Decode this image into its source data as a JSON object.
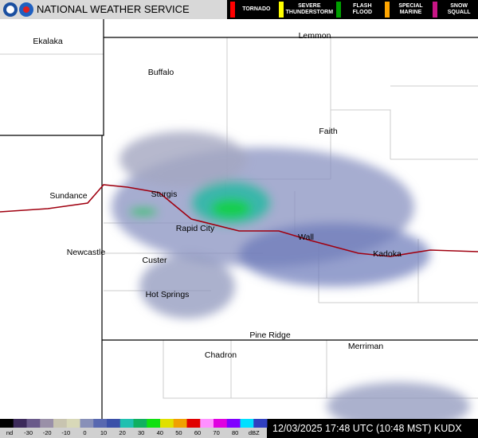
{
  "header": {
    "agency": "NATIONAL WEATHER SERVICE",
    "warnings": [
      {
        "label": "TORNADO",
        "color": "#ff0000"
      },
      {
        "label": "SEVERE THUNDERSTORM",
        "color": "#ffff00"
      },
      {
        "label": "FLASH FLOOD",
        "color": "#00a000"
      },
      {
        "label": "SPECIAL MARINE",
        "color": "#ffa500"
      },
      {
        "label": "SNOW SQUALL",
        "color": "#c71585"
      }
    ]
  },
  "cities": [
    "Ekalaka",
    "Lemmon",
    "Buffalo",
    "Faith",
    "Sundance",
    "Sturgis",
    "Rapid City",
    "Wall",
    "Kadoka",
    "Newcastle",
    "Custer",
    "Hot Springs",
    "Pine Ridge",
    "Chadron",
    "Merriman"
  ],
  "scale": {
    "no_data": "nd",
    "ticks": [
      -30,
      -20,
      -10,
      0,
      10,
      20,
      30,
      40,
      50,
      60,
      70,
      80
    ],
    "unit": "dBZ",
    "colors": [
      "#000000",
      "#3c2a5a",
      "#6a5a8a",
      "#9a90a8",
      "#c8c4b0",
      "#d8d8b8",
      "#8890b8",
      "#5868b0",
      "#3a50a8",
      "#20c0b0",
      "#10b060",
      "#10e010",
      "#e0e000",
      "#f0a000",
      "#e00000",
      "#ff90ff",
      "#e000e0",
      "#8000ff",
      "#00e0ff",
      "#3040c0"
    ]
  },
  "timestamp": "12/03/2025 17:48 UTC (10:48 MST) KUDX"
}
